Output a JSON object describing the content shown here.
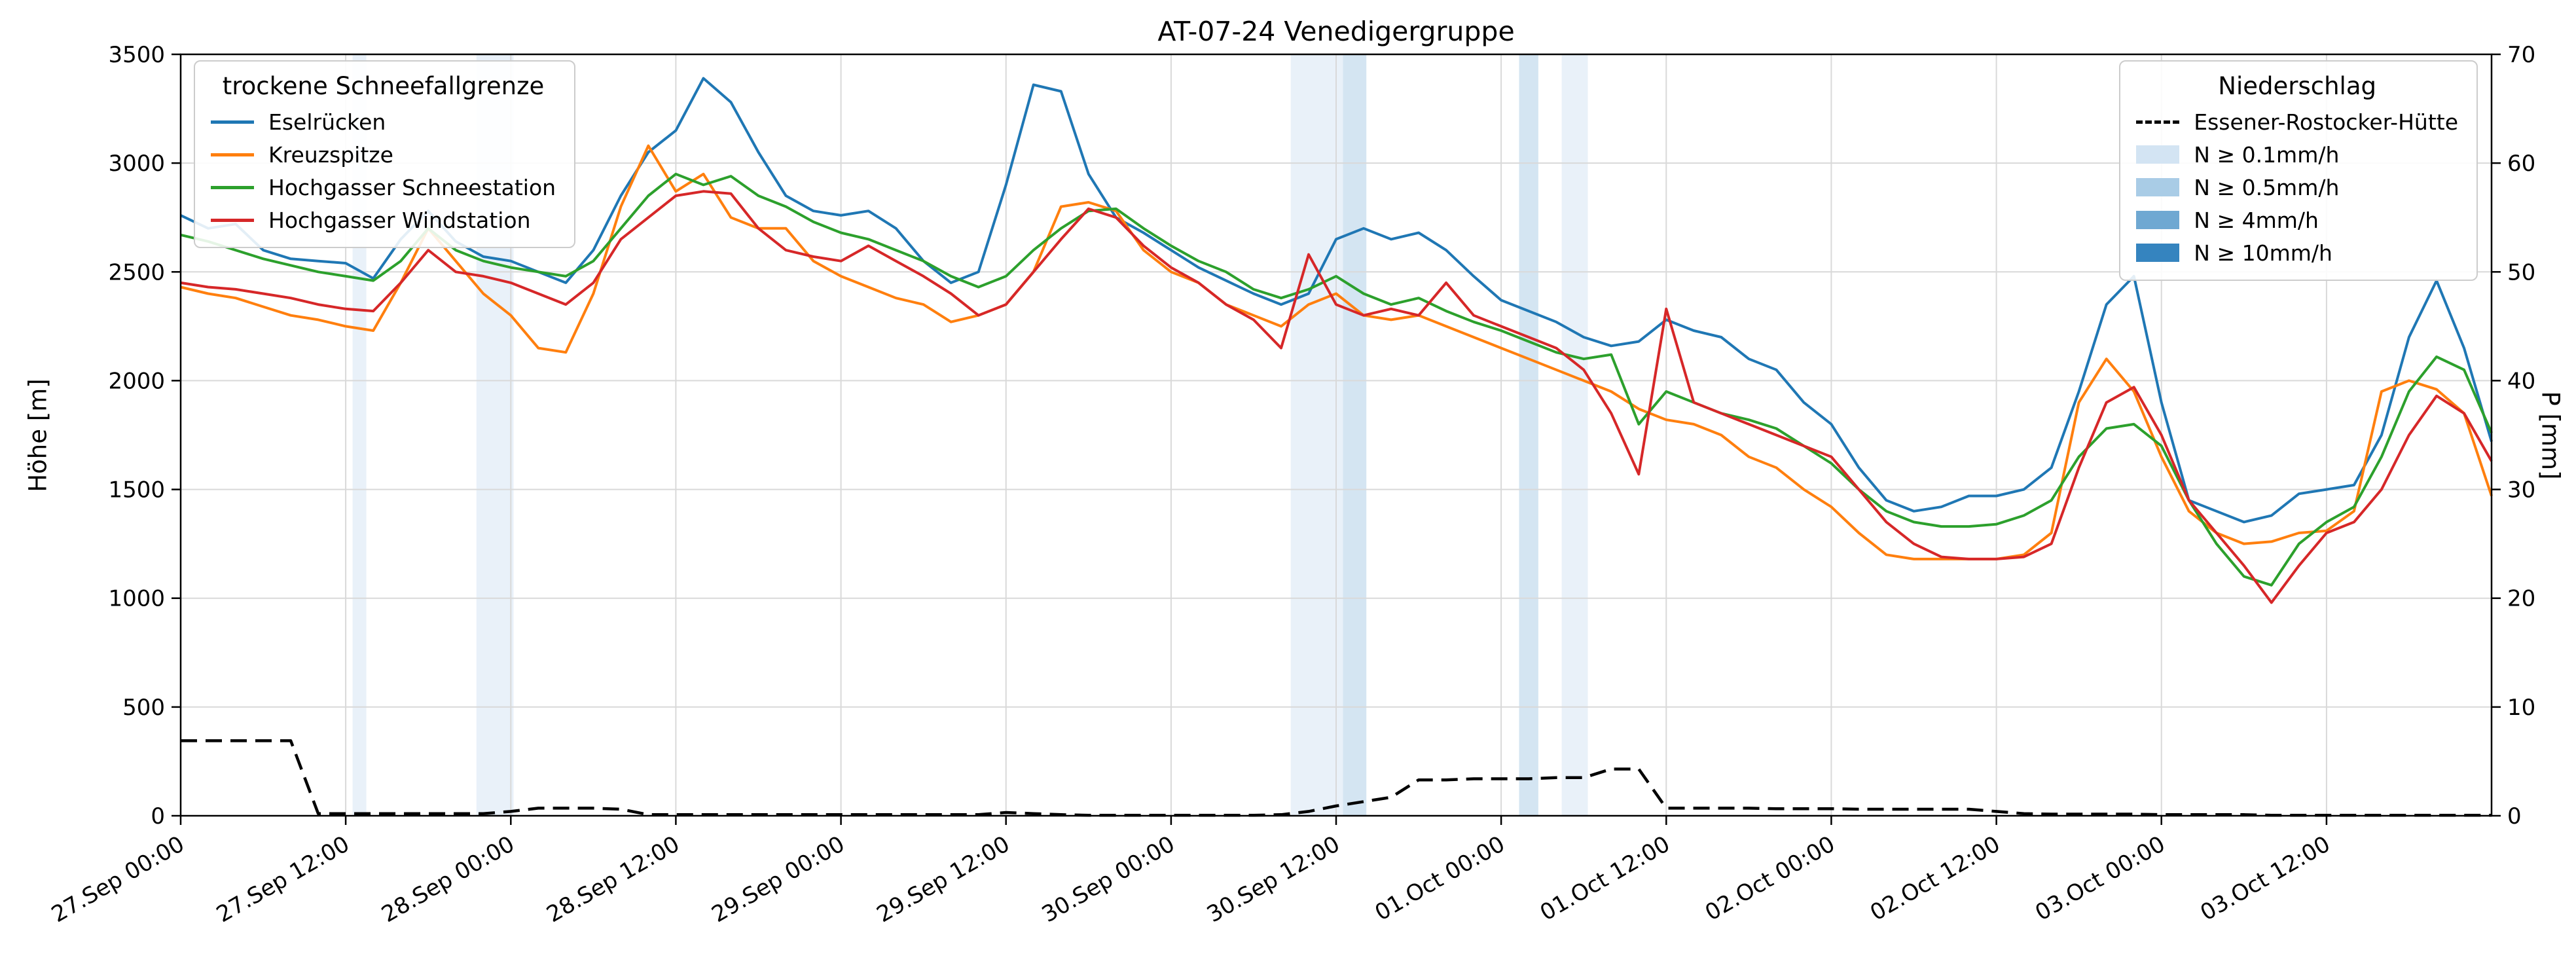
{
  "title": "AT-07-24 Venedigergruppe",
  "axes": {
    "x": {
      "total_hours": 168,
      "tick_step_hours": 12,
      "tick_labels": [
        "27.Sep 00:00",
        "27.Sep 12:00",
        "28.Sep 00:00",
        "28.Sep 12:00",
        "29.Sep 00:00",
        "29.Sep 12:00",
        "30.Sep 00:00",
        "30.Sep 12:00",
        "01.Oct 00:00",
        "01.Oct 12:00",
        "02.Oct 00:00",
        "02.Oct 12:00",
        "03.Oct 00:00",
        "03.Oct 12:00"
      ]
    },
    "y_left": {
      "label": "Höhe [m]",
      "min": 0,
      "max": 3500,
      "ticks": [
        0,
        500,
        1000,
        1500,
        2000,
        2500,
        3000,
        3500
      ]
    },
    "y_right": {
      "label": "P [mm]",
      "min": 0,
      "max": 70,
      "ticks": [
        0,
        10,
        20,
        30,
        40,
        50,
        60,
        70
      ]
    }
  },
  "legend_snowline": {
    "title": "trockene Schneefallgrenze"
  },
  "legend_precip": {
    "title": "Niederschlag",
    "band_entries": [
      {
        "label": "N ≥ 0.1mm/h",
        "color": "#d3e4f3"
      },
      {
        "label": "N ≥ 0.5mm/h",
        "color": "#a9cce6"
      },
      {
        "label": "N ≥ 4mm/h",
        "color": "#6fa8d2"
      },
      {
        "label": "N ≥ 10mm/h",
        "color": "#3584bf"
      }
    ]
  },
  "chart_data": {
    "type": "line",
    "x_unit": "hours since 27.Sep 00:00",
    "x_hours": [
      0,
      2,
      4,
      6,
      8,
      10,
      12,
      14,
      16,
      18,
      20,
      22,
      24,
      26,
      28,
      30,
      32,
      34,
      36,
      38,
      40,
      42,
      44,
      46,
      48,
      50,
      52,
      54,
      56,
      58,
      60,
      62,
      64,
      66,
      68,
      70,
      72,
      74,
      76,
      78,
      80,
      82,
      84,
      86,
      88,
      90,
      92,
      94,
      96,
      98,
      100,
      102,
      104,
      106,
      108,
      110,
      112,
      114,
      116,
      118,
      120,
      122,
      124,
      126,
      128,
      130,
      132,
      134,
      136,
      138,
      140,
      142,
      144,
      146,
      148,
      150,
      152,
      154,
      156,
      158,
      160,
      162,
      164,
      166,
      168
    ],
    "series": [
      {
        "name": "Eselrücken",
        "color": "#1f77b4",
        "axis": "left",
        "dash": false,
        "values": [
          2760,
          2700,
          2720,
          2600,
          2560,
          2550,
          2540,
          2470,
          2650,
          2780,
          2640,
          2570,
          2550,
          2500,
          2450,
          2600,
          2850,
          3050,
          3150,
          3390,
          3280,
          3050,
          2850,
          2780,
          2760,
          2780,
          2700,
          2550,
          2450,
          2500,
          2900,
          3360,
          3330,
          2950,
          2750,
          2680,
          2600,
          2520,
          2460,
          2400,
          2350,
          2400,
          2650,
          2700,
          2650,
          2680,
          2600,
          2480,
          2370,
          2320,
          2270,
          2200,
          2160,
          2180,
          2280,
          2230,
          2200,
          2100,
          2050,
          1900,
          1800,
          1600,
          1450,
          1400,
          1420,
          1470,
          1470,
          1500,
          1600,
          1950,
          2350,
          2480,
          1900,
          1450,
          1400,
          1350,
          1380,
          1480,
          1500,
          1520,
          1750,
          2200,
          2460,
          2150,
          1720
        ]
      },
      {
        "name": "Kreuzspitze",
        "color": "#ff7f0e",
        "axis": "left",
        "dash": false,
        "values": [
          2430,
          2400,
          2380,
          2340,
          2300,
          2280,
          2250,
          2230,
          2450,
          2700,
          2550,
          2400,
          2300,
          2150,
          2130,
          2400,
          2800,
          3080,
          2870,
          2950,
          2750,
          2700,
          2700,
          2550,
          2480,
          2430,
          2380,
          2350,
          2270,
          2300,
          2350,
          2500,
          2800,
          2820,
          2780,
          2600,
          2500,
          2450,
          2350,
          2300,
          2250,
          2350,
          2400,
          2300,
          2280,
          2300,
          2250,
          2200,
          2150,
          2100,
          2050,
          2000,
          1950,
          1870,
          1820,
          1800,
          1750,
          1650,
          1600,
          1500,
          1420,
          1300,
          1200,
          1180,
          1180,
          1180,
          1180,
          1200,
          1300,
          1900,
          2100,
          1950,
          1650,
          1400,
          1300,
          1250,
          1260,
          1300,
          1310,
          1400,
          1950,
          2000,
          1960,
          1850,
          1470
        ]
      },
      {
        "name": "Hochgasser Schneestation",
        "color": "#2ca02c",
        "axis": "left",
        "dash": false,
        "values": [
          2670,
          2640,
          2600,
          2560,
          2530,
          2500,
          2480,
          2460,
          2550,
          2700,
          2600,
          2550,
          2520,
          2500,
          2480,
          2550,
          2700,
          2850,
          2950,
          2900,
          2940,
          2850,
          2800,
          2730,
          2680,
          2650,
          2600,
          2550,
          2480,
          2430,
          2480,
          2600,
          2700,
          2780,
          2790,
          2700,
          2620,
          2550,
          2500,
          2420,
          2380,
          2420,
          2480,
          2400,
          2350,
          2380,
          2320,
          2270,
          2230,
          2180,
          2130,
          2100,
          2120,
          1800,
          1950,
          1900,
          1850,
          1820,
          1780,
          1700,
          1620,
          1500,
          1400,
          1350,
          1330,
          1330,
          1340,
          1380,
          1450,
          1650,
          1780,
          1800,
          1700,
          1450,
          1250,
          1100,
          1060,
          1250,
          1350,
          1420,
          1650,
          1950,
          2110,
          2050,
          1760
        ]
      },
      {
        "name": "Hochgasser Windstation",
        "color": "#d62728",
        "axis": "left",
        "dash": false,
        "values": [
          2450,
          2430,
          2420,
          2400,
          2380,
          2350,
          2330,
          2320,
          2450,
          2600,
          2500,
          2480,
          2450,
          2400,
          2350,
          2450,
          2650,
          2750,
          2850,
          2870,
          2860,
          2700,
          2600,
          2570,
          2550,
          2620,
          2550,
          2480,
          2400,
          2300,
          2350,
          2500,
          2650,
          2790,
          2750,
          2620,
          2520,
          2450,
          2350,
          2280,
          2150,
          2580,
          2350,
          2300,
          2330,
          2300,
          2450,
          2300,
          2250,
          2200,
          2150,
          2050,
          1850,
          1570,
          2330,
          1900,
          1850,
          1800,
          1750,
          1700,
          1650,
          1500,
          1350,
          1250,
          1190,
          1180,
          1180,
          1190,
          1250,
          1600,
          1900,
          1970,
          1750,
          1450,
          1300,
          1150,
          980,
          1150,
          1300,
          1350,
          1500,
          1750,
          1930,
          1850,
          1630
        ]
      },
      {
        "name": "Essener-Rostocker-Hütte",
        "color": "#000000",
        "axis": "right",
        "dash": true,
        "values": [
          6.9,
          6.9,
          6.9,
          6.9,
          6.9,
          0.2,
          0.2,
          0.2,
          0.2,
          0.2,
          0.2,
          0.2,
          0.4,
          0.7,
          0.7,
          0.7,
          0.6,
          0.1,
          0.1,
          0.1,
          0.1,
          0.1,
          0.1,
          0.1,
          0.1,
          0.1,
          0.1,
          0.1,
          0.1,
          0.1,
          0.3,
          0.2,
          0.1,
          0.05,
          0.05,
          0.05,
          0.05,
          0.05,
          0.05,
          0.05,
          0.1,
          0.4,
          0.9,
          1.3,
          1.7,
          3.3,
          3.3,
          3.4,
          3.4,
          3.4,
          3.5,
          3.5,
          4.3,
          4.3,
          0.7,
          0.7,
          0.7,
          0.7,
          0.65,
          0.65,
          0.65,
          0.6,
          0.6,
          0.6,
          0.6,
          0.6,
          0.4,
          0.2,
          0.15,
          0.15,
          0.15,
          0.15,
          0.1,
          0.1,
          0.1,
          0.1,
          0.05,
          0.05,
          0.05,
          0.05,
          0.05,
          0.05,
          0.05,
          0.05,
          0.05
        ]
      }
    ],
    "precip_bands": [
      {
        "start_hour": 12.5,
        "end_hour": 13.5,
        "level": "N ≥ 0.1mm/h",
        "color": "#d3e4f3"
      },
      {
        "start_hour": 21.5,
        "end_hour": 24.2,
        "level": "N ≥ 0.1mm/h",
        "color": "#d3e4f3"
      },
      {
        "start_hour": 80.7,
        "end_hour": 84.5,
        "level": "N ≥ 0.1mm/h",
        "color": "#d3e4f3"
      },
      {
        "start_hour": 84.5,
        "end_hour": 86.2,
        "level": "N ≥ 0.5mm/h",
        "color": "#a9cce6"
      },
      {
        "start_hour": 97.3,
        "end_hour": 98.7,
        "level": "N ≥ 0.5mm/h",
        "color": "#a9cce6"
      },
      {
        "start_hour": 100.4,
        "end_hour": 102.3,
        "level": "N ≥ 0.1mm/h",
        "color": "#d3e4f3"
      }
    ]
  }
}
